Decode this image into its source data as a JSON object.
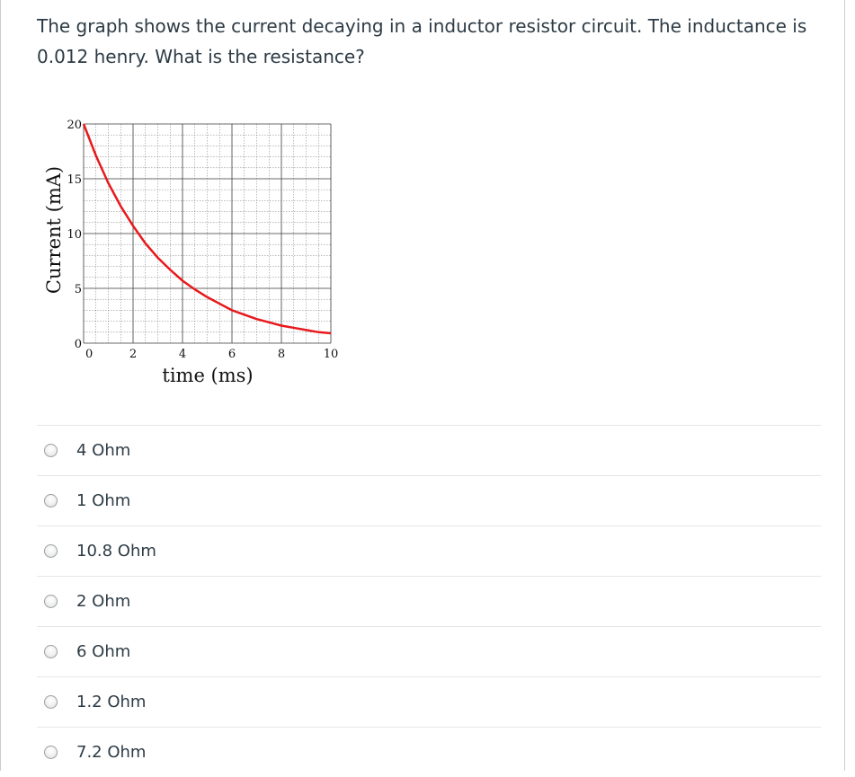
{
  "question": {
    "text": "The graph shows the current decaying in a inductor resistor circuit.  The inductance is 0.012 henry.  What is the resistance?"
  },
  "chart_data": {
    "type": "line",
    "title": "",
    "xlabel": "time (ms)",
    "ylabel": "Current (mA)",
    "xlim": [
      0,
      10
    ],
    "ylim": [
      0,
      20
    ],
    "x_ticks": [
      "0",
      "2",
      "4",
      "6",
      "8",
      "10"
    ],
    "y_ticks": [
      "0",
      "5",
      "10",
      "15",
      "20"
    ],
    "grid": true,
    "line_color": "#e8191c",
    "series": [
      {
        "x": [
          0,
          0.5,
          1,
          1.5,
          2,
          2.5,
          3,
          3.5,
          4,
          4.5,
          5,
          5.5,
          6,
          6.5,
          7,
          7.5,
          8,
          8.5,
          9,
          9.5,
          10
        ],
        "values": [
          20.0,
          17.1,
          14.6,
          12.5,
          10.7,
          9.1,
          7.8,
          6.7,
          5.7,
          4.9,
          4.2,
          3.6,
          3.0,
          2.6,
          2.2,
          1.9,
          1.6,
          1.4,
          1.2,
          1.0,
          0.9
        ]
      }
    ]
  },
  "answers": [
    {
      "label": "4 Ohm"
    },
    {
      "label": "1 Ohm"
    },
    {
      "label": "10.8 Ohm"
    },
    {
      "label": "2 Ohm"
    },
    {
      "label": "6 Ohm"
    },
    {
      "label": "1.2 Ohm"
    },
    {
      "label": "7.2 Ohm"
    }
  ]
}
